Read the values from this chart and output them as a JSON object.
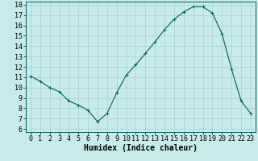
{
  "x": [
    0,
    1,
    2,
    3,
    4,
    5,
    6,
    7,
    8,
    9,
    10,
    11,
    12,
    13,
    14,
    15,
    16,
    17,
    18,
    19,
    20,
    21,
    22,
    23
  ],
  "y": [
    11.1,
    10.6,
    10.0,
    9.6,
    8.7,
    8.3,
    7.8,
    6.7,
    7.5,
    9.5,
    11.2,
    12.2,
    13.3,
    14.4,
    15.6,
    16.6,
    17.3,
    17.8,
    17.8,
    17.2,
    15.2,
    11.8,
    8.7,
    7.5
  ],
  "line_color": "#006060",
  "marker": "+",
  "marker_size": 3,
  "bg_color": "#c8eaea",
  "grid_color_major": "#a8d0d0",
  "grid_color_minor": "#b8dede",
  "xlabel": "Humidex (Indice chaleur)",
  "xlabel_fontsize": 7,
  "tick_fontsize": 6,
  "ylim_min": 6,
  "ylim_max": 18,
  "xlim_min": -0.5,
  "xlim_max": 23.5,
  "yticks": [
    6,
    7,
    8,
    9,
    10,
    11,
    12,
    13,
    14,
    15,
    16,
    17,
    18
  ],
  "xticks": [
    0,
    1,
    2,
    3,
    4,
    5,
    6,
    7,
    8,
    9,
    10,
    11,
    12,
    13,
    14,
    15,
    16,
    17,
    18,
    19,
    20,
    21,
    22,
    23
  ]
}
